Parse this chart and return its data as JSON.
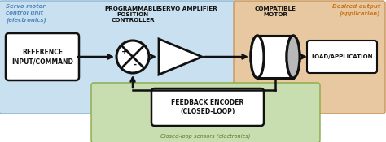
{
  "bg_left_color": "#c8e0f0",
  "bg_right_color": "#e8c8a0",
  "bg_feedback_color": "#c8ddb0",
  "text_left_label": "Servo motor\ncontrol unit\n(electronics)",
  "text_right_label": "Desired output\n(application)",
  "text_feedback_label": "Closed-loop sensors (electronics)",
  "title_prog": "PROGRAMMABLE\nPOSITION\nCONTROLLER",
  "title_amp": "SERVO AMPLIFIER",
  "title_motor": "COMPATIBLE\nMOTOR",
  "label_ref": "REFERENCE\nINPUT/COMMAND",
  "label_load": "LOAD/APPLICATION",
  "label_feedback": "FEEDBACK ENCODER\n(CLOSED-LOOP)",
  "arrow_color": "#111111",
  "box_edge_color": "#111111",
  "text_color_dark": "#111111",
  "text_color_blue": "#5588bb",
  "text_color_orange": "#cc7722",
  "text_color_green": "#5a7a22",
  "bg_left_edge": "#8ab4d4",
  "bg_right_edge": "#c8945a",
  "bg_feedback_edge": "#88aa44"
}
